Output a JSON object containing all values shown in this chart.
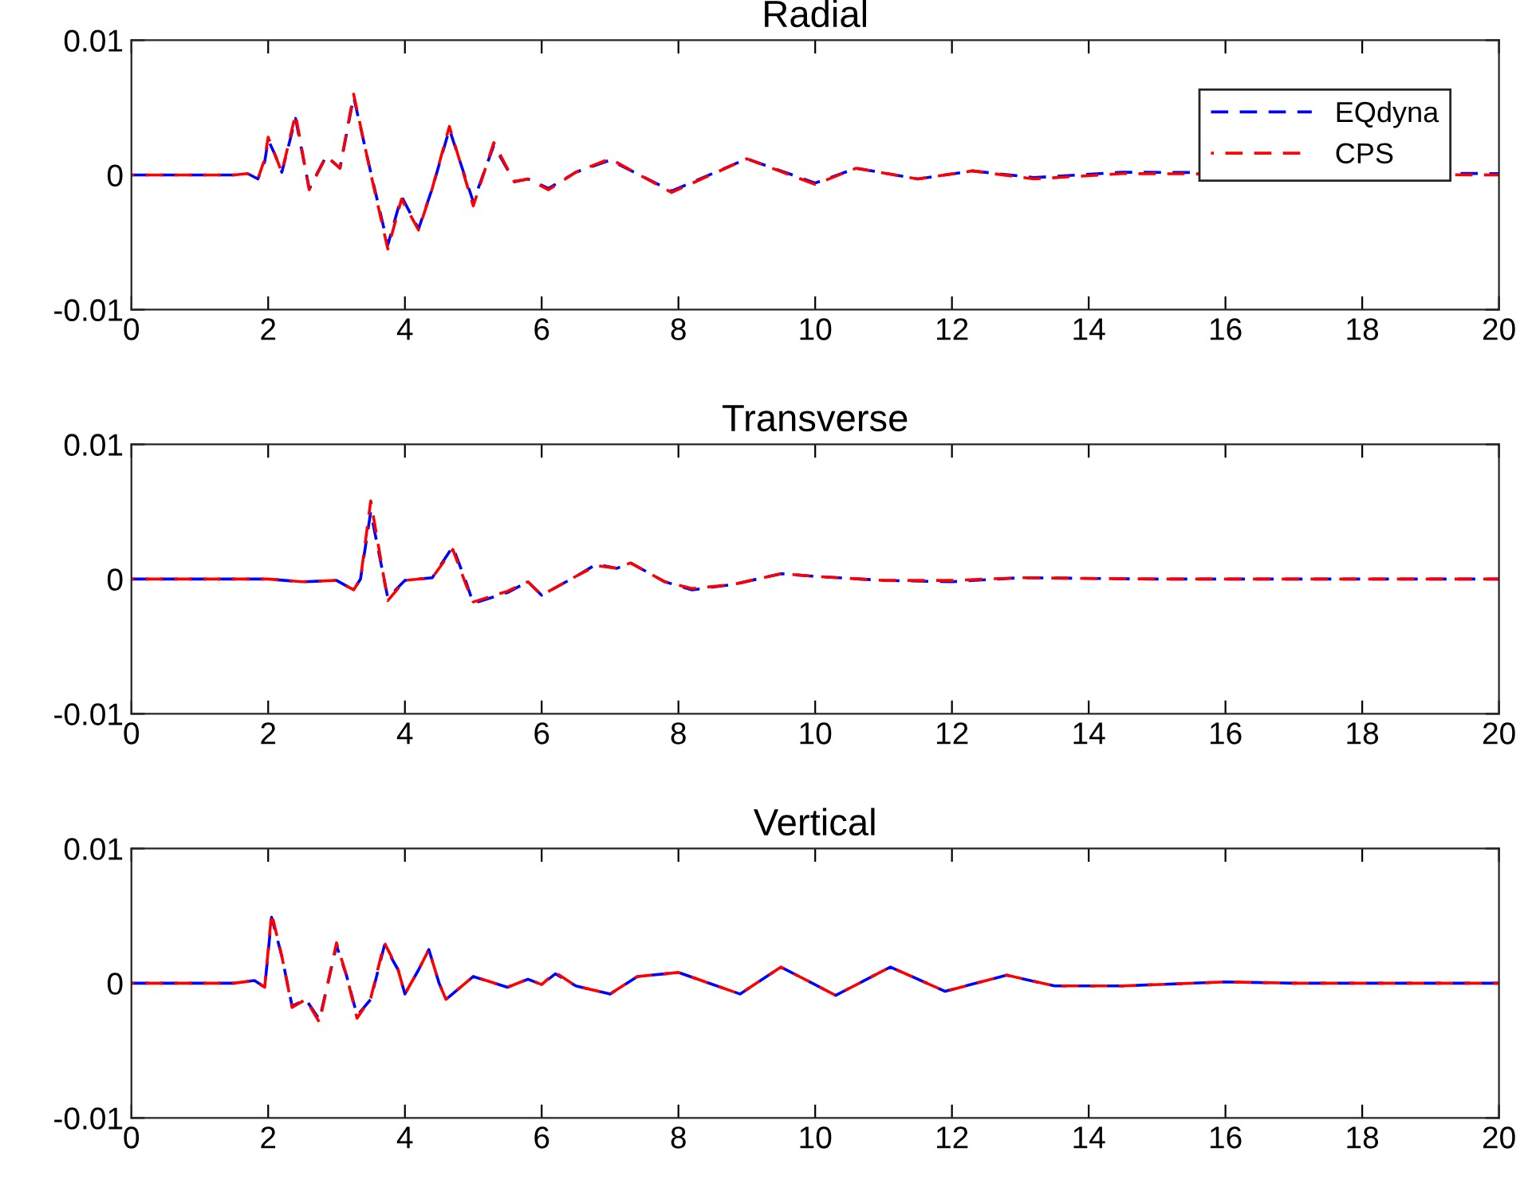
{
  "chart_data": [
    {
      "type": "line",
      "title": "Radial",
      "line_style": "dashed",
      "legend": "top right",
      "grid": false,
      "xlim": [
        0,
        20
      ],
      "ylim": [
        -0.01,
        0.01
      ],
      "xticks": [
        0,
        2,
        4,
        6,
        8,
        10,
        12,
        14,
        16,
        18,
        20
      ],
      "yticks": [
        -0.01,
        0,
        0.01
      ],
      "x": [
        0,
        1.5,
        1.7,
        1.85,
        1.95,
        2.0,
        2.1,
        2.2,
        2.4,
        2.6,
        2.85,
        3.05,
        3.25,
        3.5,
        3.75,
        3.95,
        4.2,
        4.4,
        4.65,
        5.0,
        5.3,
        5.6,
        5.8,
        6.1,
        6.5,
        7.0,
        7.9,
        9.0,
        10.0,
        10.6,
        11.5,
        12.3,
        13.2,
        14.5,
        20
      ],
      "series": [
        {
          "name": "EQdyna",
          "color": "#0000ff",
          "values": [
            0,
            0,
            0.0001,
            -0.0003,
            0.001,
            0.0026,
            0.0015,
            0.0002,
            0.0042,
            -0.001,
            0.0014,
            0.0005,
            0.0058,
            0.0002,
            -0.0052,
            -0.0016,
            -0.004,
            -0.001,
            0.0034,
            -0.002,
            0.0022,
            -0.0005,
            -0.0003,
            -0.001,
            0.0002,
            0.0011,
            -0.0012,
            0.0012,
            -0.0006,
            0.0005,
            -0.0003,
            0.0003,
            -0.0002,
            0.0002,
            0.0001
          ]
        },
        {
          "name": "CPS",
          "color": "#ff0000",
          "values": [
            0,
            0,
            0.0001,
            -0.0003,
            0.0012,
            0.0028,
            0.0015,
            0.0002,
            0.0045,
            -0.0011,
            0.0014,
            0.0005,
            0.006,
            0.0001,
            -0.0055,
            -0.0018,
            -0.0041,
            -0.001,
            0.0036,
            -0.0023,
            0.0024,
            -0.0005,
            -0.0003,
            -0.0011,
            0.0002,
            0.0012,
            -0.0013,
            0.0012,
            -0.0007,
            0.0005,
            -0.0003,
            0.0003,
            -0.0003,
            0.0001,
            0
          ]
        }
      ]
    },
    {
      "type": "line",
      "title": "Transverse",
      "line_style": "dashed",
      "grid": false,
      "xlim": [
        0,
        20
      ],
      "ylim": [
        -0.01,
        0.01
      ],
      "xticks": [
        0,
        2,
        4,
        6,
        8,
        10,
        12,
        14,
        16,
        18,
        20
      ],
      "yticks": [
        -0.01,
        0,
        0.01
      ],
      "x": [
        0,
        2.0,
        2.5,
        3.0,
        3.25,
        3.35,
        3.5,
        3.75,
        4.0,
        4.4,
        4.7,
        4.9,
        5.0,
        5.5,
        5.8,
        6.0,
        6.5,
        6.8,
        7.1,
        7.3,
        7.8,
        8.2,
        8.8,
        9.5,
        10,
        11,
        12,
        13,
        15,
        20
      ],
      "series": [
        {
          "color": "#0000ff",
          "values": [
            0,
            0,
            -0.0002,
            -0.0001,
            -0.0008,
            0.0,
            0.005,
            -0.0014,
            -0.0001,
            0.0001,
            0.0024,
            -0.0003,
            -0.0018,
            -0.001,
            -0.0002,
            -0.0012,
            0.0002,
            0.0011,
            0.0008,
            0.0012,
            -0.0002,
            -0.0008,
            -0.0004,
            0.0004,
            0.0002,
            -0.0001,
            -0.0002,
            0.0001,
            0,
            0
          ]
        },
        {
          "color": "#ff0000",
          "values": [
            0,
            0,
            -0.0002,
            -0.0001,
            -0.0008,
            0.0,
            0.0058,
            -0.0016,
            -0.0001,
            0.0001,
            0.0022,
            -0.0005,
            -0.0017,
            -0.0009,
            -0.0002,
            -0.0012,
            0.0002,
            0.001,
            0.0008,
            0.0012,
            -0.0002,
            -0.0007,
            -0.0004,
            0.0004,
            0.0002,
            -0.0001,
            -0.0001,
            0.0001,
            0,
            0
          ]
        }
      ]
    },
    {
      "type": "line",
      "title": "Vertical",
      "line_style": "dashed",
      "grid": false,
      "xlim": [
        0,
        20
      ],
      "ylim": [
        -0.01,
        0.01
      ],
      "xticks": [
        0,
        2,
        4,
        6,
        8,
        10,
        12,
        14,
        16,
        18,
        20
      ],
      "yticks": [
        -0.01,
        0,
        0.01
      ],
      "x": [
        0,
        1.5,
        1.8,
        1.95,
        2.05,
        2.2,
        2.35,
        2.55,
        2.75,
        3.0,
        3.15,
        3.3,
        3.5,
        3.7,
        3.9,
        4.0,
        4.2,
        4.35,
        4.5,
        4.6,
        5.0,
        5.5,
        5.8,
        6.0,
        6.2,
        6.5,
        7.0,
        7.4,
        8.0,
        8.9,
        9.5,
        10.3,
        11.1,
        11.9,
        12.8,
        13.5,
        14.5,
        16,
        17,
        20
      ],
      "series": [
        {
          "color": "#0000ff",
          "values": [
            0,
            0,
            0.0002,
            -0.0003,
            0.0049,
            0.002,
            -0.0017,
            -0.0012,
            -0.0027,
            0.0028,
            0.0005,
            -0.0024,
            -0.0012,
            0.0028,
            0.001,
            -0.0008,
            0.001,
            0.0025,
            0.0,
            -0.0012,
            0.0005,
            -0.0003,
            0.0003,
            -0.0001,
            0.0007,
            -0.0002,
            -0.0008,
            0.0005,
            0.0008,
            -0.0008,
            0.0012,
            -0.0009,
            0.0012,
            -0.0006,
            0.0006,
            -0.0002,
            -0.0002,
            0.0001,
            0,
            0
          ]
        },
        {
          "color": "#ff0000",
          "values": [
            0,
            0,
            0.0002,
            -0.0003,
            0.0052,
            0.002,
            -0.0018,
            -0.0012,
            -0.0029,
            0.003,
            0.0005,
            -0.0026,
            -0.0011,
            0.003,
            0.001,
            -0.0008,
            0.001,
            0.0025,
            0.0,
            -0.0012,
            0.0005,
            -0.0003,
            0.0003,
            -0.0001,
            0.0008,
            -0.0002,
            -0.0008,
            0.0005,
            0.0008,
            -0.0008,
            0.0012,
            -0.0009,
            0.0012,
            -0.0006,
            0.0006,
            -0.0002,
            -0.0002,
            0.0001,
            0,
            0
          ]
        }
      ]
    }
  ]
}
